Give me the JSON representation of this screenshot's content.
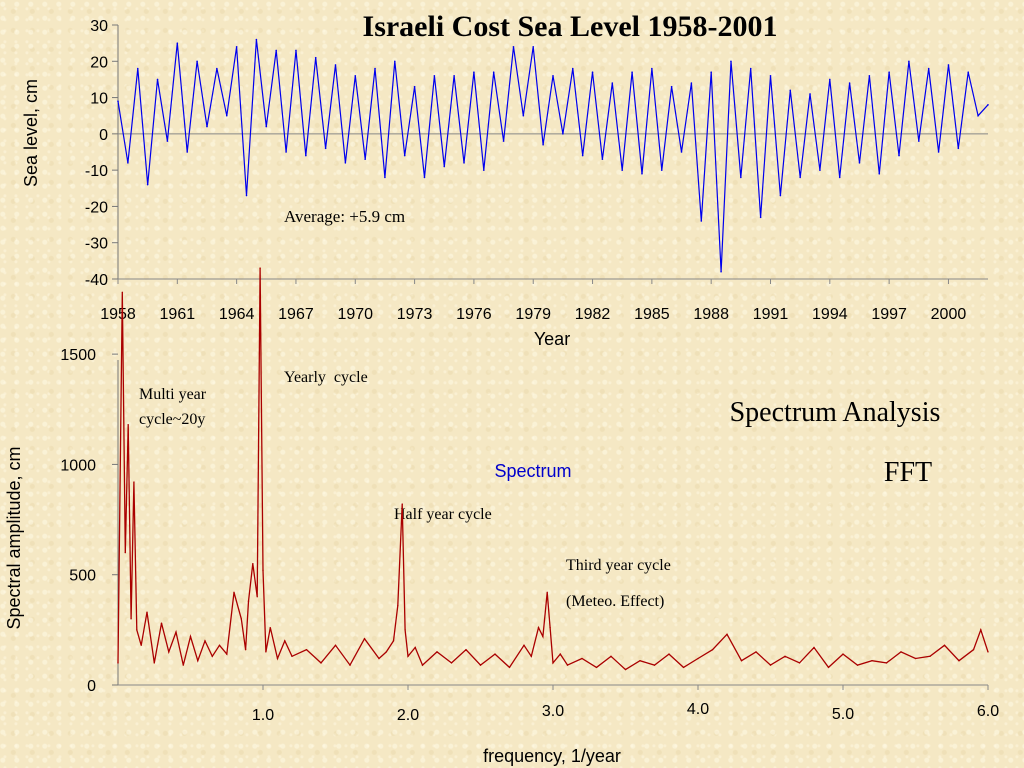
{
  "chart_data": [
    {
      "type": "line",
      "title": "Israeli Cost Sea Level 1958-2001",
      "xlabel": "Year",
      "ylabel": "Sea level, cm",
      "xlim": [
        1958,
        2002
      ],
      "ylim": [
        -40,
        30
      ],
      "x_ticks": [
        "1958",
        "1961",
        "1964",
        "1967",
        "1970",
        "1973",
        "1976",
        "1979",
        "1982",
        "1985",
        "1988",
        "1991",
        "1994",
        "1997",
        "2000"
      ],
      "y_ticks": [
        "30",
        "20",
        "10",
        "0",
        "-10",
        "-20",
        "-30",
        "-40"
      ],
      "annotation": "Average: +5.9 cm",
      "series": [
        {
          "color": "#0000ee",
          "x": [
            1958.0,
            1958.5,
            1959.0,
            1959.5,
            1960.0,
            1960.5,
            1961.0,
            1961.5,
            1962.0,
            1962.5,
            1963.0,
            1963.5,
            1964.0,
            1964.5,
            1965.0,
            1965.5,
            1966.0,
            1966.5,
            1967.0,
            1967.5,
            1968.0,
            1968.5,
            1969.0,
            1969.5,
            1970.0,
            1970.5,
            1971.0,
            1971.5,
            1972.0,
            1972.5,
            1973.0,
            1973.5,
            1974.0,
            1974.5,
            1975.0,
            1975.5,
            1976.0,
            1976.5,
            1977.0,
            1977.5,
            1978.0,
            1978.5,
            1979.0,
            1979.5,
            1980.0,
            1980.5,
            1981.0,
            1981.5,
            1982.0,
            1982.5,
            1983.0,
            1983.5,
            1984.0,
            1984.5,
            1985.0,
            1985.5,
            1986.0,
            1986.5,
            1987.0,
            1987.5,
            1988.0,
            1988.5,
            1989.0,
            1989.5,
            1990.0,
            1990.5,
            1991.0,
            1991.5,
            1992.0,
            1992.5,
            1993.0,
            1993.5,
            1994.0,
            1994.5,
            1995.0,
            1995.5,
            1996.0,
            1996.5,
            1997.0,
            1997.5,
            1998.0,
            1998.5,
            1999.0,
            1999.5,
            2000.0,
            2000.5,
            2001.0,
            2001.5,
            2002.0
          ],
          "values": [
            9,
            -8,
            18,
            -14,
            15,
            -2,
            25,
            -5,
            20,
            2,
            18,
            5,
            24,
            -17,
            26,
            2,
            23,
            -5,
            23,
            -6,
            21,
            -4,
            19,
            -8,
            16,
            -7,
            18,
            -12,
            20,
            -6,
            13,
            -12,
            16,
            -9,
            16,
            -8,
            17,
            -10,
            17,
            -2,
            24,
            5,
            24,
            -3,
            16,
            0,
            18,
            -6,
            17,
            -7,
            14,
            -10,
            17,
            -11,
            18,
            -10,
            13,
            -5,
            14,
            -24,
            17,
            -38,
            20,
            -12,
            18,
            -23,
            16,
            -17,
            12,
            -12,
            11,
            -10,
            15,
            -12,
            14,
            -8,
            16,
            -11,
            17,
            -6,
            20,
            -2,
            18,
            -5,
            19,
            -4,
            17,
            5,
            8
          ]
        }
      ]
    },
    {
      "type": "line",
      "title": "Spectrum Analysis",
      "subtitle": "FFT",
      "xlabel": "frequency, 1/year",
      "ylabel": "Spectral amplitude, cm",
      "xlim": [
        0,
        6
      ],
      "ylim": [
        0,
        1700
      ],
      "x_ticks": [
        "1.0",
        "2.0",
        "3.0",
        "4.0",
        "5.0",
        "6.0"
      ],
      "y_ticks": [
        "1500",
        "1000",
        "500",
        "0"
      ],
      "series": [
        {
          "name": "Spectrum",
          "color": "#aa0000",
          "x": [
            0.0,
            0.03,
            0.05,
            0.07,
            0.09,
            0.11,
            0.13,
            0.16,
            0.2,
            0.25,
            0.3,
            0.35,
            0.4,
            0.45,
            0.5,
            0.55,
            0.6,
            0.65,
            0.7,
            0.75,
            0.8,
            0.85,
            0.88,
            0.9,
            0.93,
            0.96,
            0.98,
            1.0,
            1.02,
            1.05,
            1.1,
            1.15,
            1.2,
            1.3,
            1.4,
            1.5,
            1.6,
            1.7,
            1.8,
            1.85,
            1.9,
            1.93,
            1.96,
            1.98,
            2.0,
            2.05,
            2.1,
            2.2,
            2.3,
            2.4,
            2.5,
            2.6,
            2.7,
            2.8,
            2.85,
            2.9,
            2.93,
            2.96,
            2.98,
            3.0,
            3.05,
            3.1,
            3.2,
            3.3,
            3.4,
            3.5,
            3.6,
            3.7,
            3.8,
            3.9,
            4.0,
            4.1,
            4.2,
            4.3,
            4.4,
            4.5,
            4.6,
            4.7,
            4.8,
            4.9,
            5.0,
            5.1,
            5.2,
            5.3,
            5.4,
            5.5,
            5.6,
            5.7,
            5.8,
            5.9,
            5.95,
            6.0
          ],
          "values": [
            100,
            1780,
            600,
            1180,
            300,
            920,
            250,
            180,
            330,
            100,
            280,
            150,
            240,
            90,
            220,
            110,
            200,
            130,
            180,
            140,
            420,
            300,
            160,
            380,
            550,
            400,
            1890,
            520,
            150,
            260,
            120,
            200,
            130,
            160,
            100,
            180,
            90,
            210,
            120,
            150,
            200,
            360,
            820,
            250,
            130,
            170,
            90,
            150,
            100,
            160,
            90,
            140,
            80,
            180,
            130,
            260,
            220,
            420,
            260,
            100,
            140,
            90,
            120,
            80,
            130,
            70,
            110,
            90,
            140,
            80,
            120,
            160,
            230,
            110,
            150,
            90,
            130,
            100,
            170,
            80,
            140,
            90,
            110,
            100,
            150,
            120,
            130,
            180,
            110,
            160,
            250,
            150
          ]
        }
      ],
      "annotations": [
        {
          "text": "Multi year"
        },
        {
          "text": "cycle~20y"
        },
        {
          "text": "Yearly  cycle"
        },
        {
          "text": "Half year cycle"
        },
        {
          "text": "Third year cycle"
        },
        {
          "text": "(Meteo. Effect)"
        }
      ]
    }
  ]
}
